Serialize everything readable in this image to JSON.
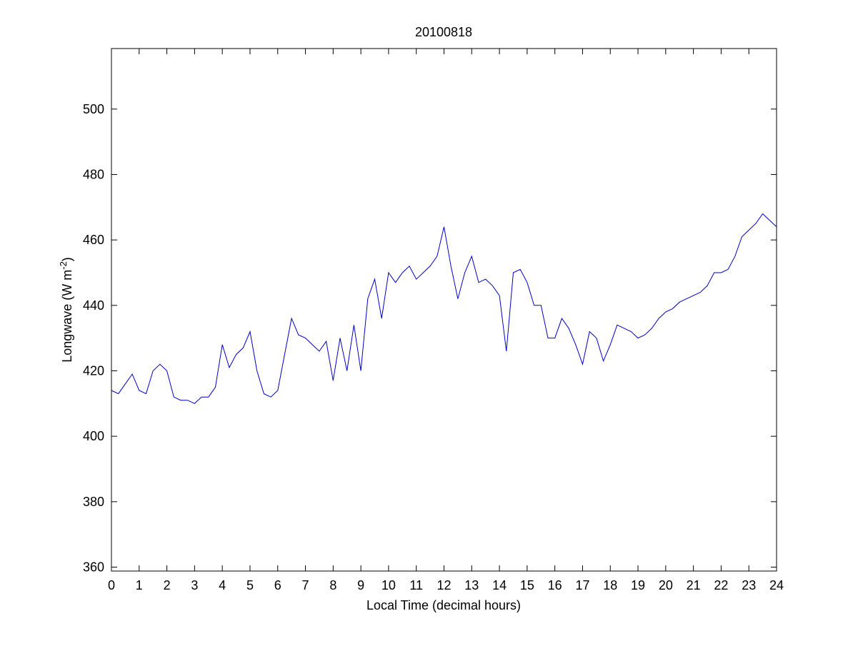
{
  "chart_data": {
    "type": "line",
    "title": "20100818",
    "x_label": "Local Time (decimal hours)",
    "y_label": "Longwave (W m",
    "y_label_sup": "-2",
    "y_label_end": ")",
    "x": [
      0,
      0.25,
      0.5,
      0.75,
      1,
      1.25,
      1.5,
      1.75,
      2,
      2.25,
      2.5,
      2.75,
      3,
      3.25,
      3.5,
      3.75,
      4,
      4.25,
      4.5,
      4.75,
      5,
      5.25,
      5.5,
      5.75,
      6,
      6.25,
      6.5,
      6.75,
      7,
      7.25,
      7.5,
      7.75,
      8,
      8.25,
      8.5,
      8.75,
      9,
      9.25,
      9.5,
      9.75,
      10,
      10.25,
      10.5,
      10.75,
      11,
      11.25,
      11.5,
      11.75,
      12,
      12.25,
      12.5,
      12.75,
      13,
      13.25,
      13.5,
      13.75,
      14,
      14.25,
      14.5,
      14.75,
      15,
      15.25,
      15.5,
      15.75,
      16,
      16.25,
      16.5,
      16.75,
      17,
      17.25,
      17.5,
      17.75,
      18,
      18.25,
      18.5,
      18.75,
      19,
      19.25,
      19.5,
      19.75,
      20,
      20.25,
      20.5,
      20.75,
      21,
      21.25,
      21.5,
      21.75,
      22,
      22.25,
      22.5,
      22.75,
      23,
      23.25,
      23.5,
      23.75,
      24
    ],
    "series": [
      {
        "name": "Longwave",
        "color": "#0000c8",
        "values": [
          414,
          413,
          416,
          419,
          414,
          413,
          420,
          422,
          420,
          412,
          411,
          411,
          410,
          412,
          412,
          415,
          428,
          421,
          425,
          427,
          432,
          420,
          413,
          412,
          414,
          425,
          436,
          431,
          430,
          428,
          426,
          429,
          417,
          430,
          420,
          434,
          420,
          442,
          448,
          436,
          450,
          447,
          450,
          452,
          448,
          450,
          452,
          455,
          464,
          452,
          442,
          450,
          455,
          447,
          448,
          446,
          443,
          426,
          450,
          451,
          447,
          440,
          440,
          430,
          430,
          436,
          433,
          428,
          422,
          432,
          430,
          423,
          428,
          434,
          433,
          432,
          430,
          431,
          433,
          436,
          438,
          439,
          441,
          442,
          443,
          444,
          446,
          450,
          450,
          451,
          455,
          461,
          463,
          465,
          468,
          466,
          464
        ]
      }
    ],
    "xlim": [
      0,
      24
    ],
    "xticks": [
      0,
      1,
      2,
      3,
      4,
      5,
      6,
      7,
      8,
      9,
      10,
      11,
      12,
      13,
      14,
      15,
      16,
      17,
      18,
      19,
      20,
      21,
      22,
      23,
      24
    ],
    "ylim": [
      358.8,
      518.5
    ],
    "yticks": [
      360,
      380,
      400,
      420,
      440,
      460,
      480,
      500
    ],
    "grid": false
  }
}
